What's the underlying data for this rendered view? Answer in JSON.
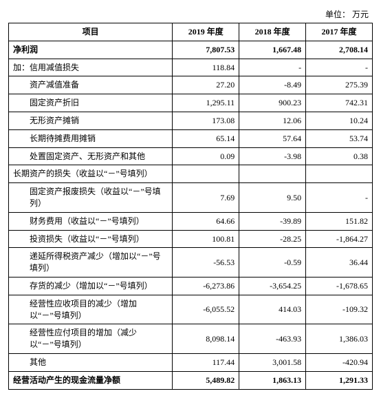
{
  "unit_label": "单位：   万元",
  "columns": [
    "项目",
    "2019 年度",
    "2018 年度",
    "2017 年度"
  ],
  "rows": [
    {
      "label": "净利润",
      "v": [
        "7,807.53",
        "1,667.48",
        "2,708.14"
      ],
      "bold": true,
      "indent": 0
    },
    {
      "label": "加：信用减值损失",
      "v": [
        "118.84",
        "-",
        "-"
      ],
      "bold": false,
      "indent": 0
    },
    {
      "label": "资产减值准备",
      "v": [
        "27.20",
        "-8.49",
        "275.39"
      ],
      "bold": false,
      "indent": 2
    },
    {
      "label": "固定资产折旧",
      "v": [
        "1,295.11",
        "900.23",
        "742.31"
      ],
      "bold": false,
      "indent": 2
    },
    {
      "label": "无形资产摊销",
      "v": [
        "173.08",
        "12.06",
        "10.24"
      ],
      "bold": false,
      "indent": 2
    },
    {
      "label": "长期待摊费用摊销",
      "v": [
        "65.14",
        "57.64",
        "53.74"
      ],
      "bold": false,
      "indent": 2
    },
    {
      "label": "处置固定资产、无形资产和其他",
      "v": [
        "0.09",
        "-3.98",
        "0.38"
      ],
      "bold": false,
      "indent": 2
    },
    {
      "label": "长期资产的损失（收益以“－”号填列）",
      "v": [
        "",
        "",
        ""
      ],
      "bold": false,
      "indent": 0
    },
    {
      "label": "固定资产报废损失（收益以“－”号填列）",
      "v": [
        "7.69",
        "9.50",
        "-"
      ],
      "bold": false,
      "indent": 2
    },
    {
      "label": "财务费用（收益以“－”号填列）",
      "v": [
        "64.66",
        "-39.89",
        "151.82"
      ],
      "bold": false,
      "indent": 2
    },
    {
      "label": "投资损失（收益以“－”号填列）",
      "v": [
        "100.81",
        "-28.25",
        "-1,864.27"
      ],
      "bold": false,
      "indent": 2
    },
    {
      "label": "递延所得税资产减少（增加以“－”号填列）",
      "v": [
        "-56.53",
        "-0.59",
        "36.44"
      ],
      "bold": false,
      "indent": 2
    },
    {
      "label": "存货的减少（增加以“－”号填列）",
      "v": [
        "-6,273.86",
        "-3,654.25",
        "-1,678.65"
      ],
      "bold": false,
      "indent": 2
    },
    {
      "label": "经营性应收项目的减少（增加以“－”号填列）",
      "v": [
        "-6,055.52",
        "414.03",
        "-109.32"
      ],
      "bold": false,
      "indent": 2
    },
    {
      "label": "经营性应付项目的增加（减少以“－”号填列）",
      "v": [
        "8,098.14",
        "-463.93",
        "1,386.03"
      ],
      "bold": false,
      "indent": 2
    },
    {
      "label": "其他",
      "v": [
        "117.44",
        "3,001.58",
        "-420.94"
      ],
      "bold": false,
      "indent": 2
    },
    {
      "label": "经营活动产生的现金流量净额",
      "v": [
        "5,489.82",
        "1,863.13",
        "1,291.33"
      ],
      "bold": true,
      "indent": 0
    }
  ]
}
